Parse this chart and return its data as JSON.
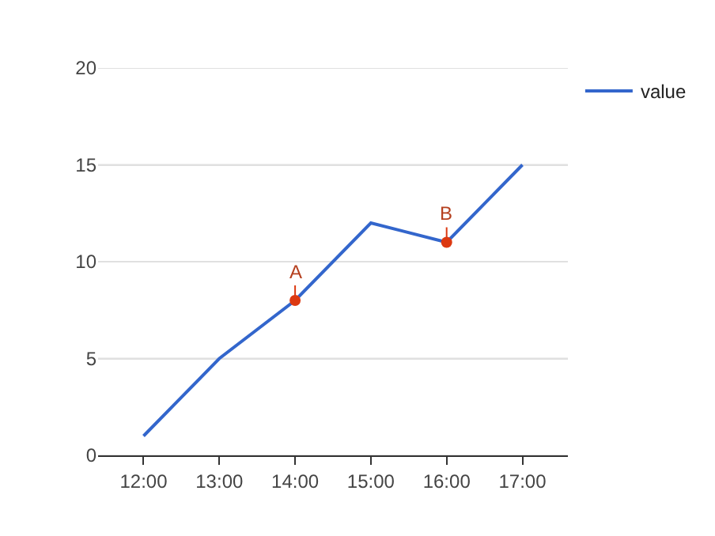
{
  "chart_data": {
    "type": "line",
    "categories": [
      "12:00",
      "13:00",
      "14:00",
      "15:00",
      "16:00",
      "17:00"
    ],
    "series": [
      {
        "name": "value",
        "color": "#3366cc",
        "values": [
          1,
          5,
          8,
          12,
          11,
          15
        ]
      },
      {
        "type": "scatter",
        "color": "#dc3912",
        "x": [
          "14:00",
          "16:00"
        ],
        "values": [
          8,
          11
        ],
        "marker": "circle"
      }
    ],
    "annotations": [
      {
        "text": "A",
        "x": "14:00",
        "y": 8
      },
      {
        "text": "B",
        "x": "16:00",
        "y": 11
      }
    ],
    "ylim": [
      0,
      20
    ],
    "yticks": [
      0,
      5,
      10,
      15,
      20
    ],
    "grid": "y",
    "legend": "top right"
  }
}
